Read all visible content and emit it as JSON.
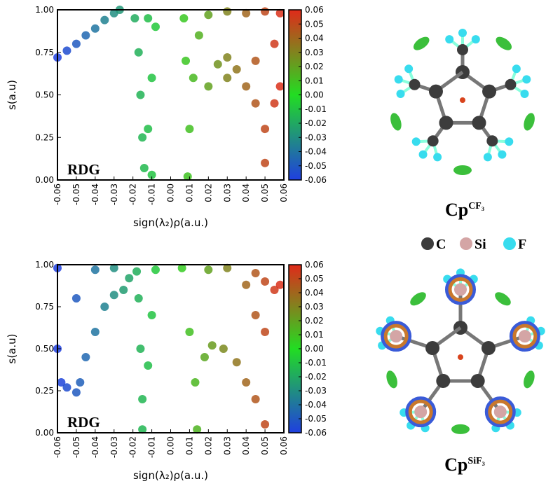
{
  "chart_data": [
    {
      "type": "scatter",
      "y_label": "s(a.u)",
      "x_label": "sign(λ₂)ρ(a.u.)",
      "annotation": "RDG",
      "xlim": [
        -0.06,
        0.06
      ],
      "ylim": [
        0,
        1
      ],
      "xticks": [
        -0.06,
        -0.05,
        -0.04,
        -0.03,
        -0.02,
        -0.01,
        {
          "value": 0,
          "label": "0.00"
        },
        0.01,
        0.02,
        0.03,
        0.04,
        0.05,
        0.06
      ],
      "yticks": [
        {
          "value": 0,
          "label": "0.00"
        },
        0.25,
        {
          "value": 0.5,
          "label": "0.50"
        },
        0.75,
        {
          "value": 1,
          "label": "1.00"
        }
      ],
      "clim": [
        -0.06,
        0.06
      ],
      "cticks": [
        -0.06,
        -0.05,
        -0.04,
        -0.03,
        -0.02,
        -0.01,
        {
          "value": 0,
          "label": "0.00"
        },
        0.01,
        0.02,
        0.03,
        0.04,
        0.05,
        0.06
      ],
      "colormap": [
        "#1f3fe0",
        "#22dd22",
        "#e02a1a"
      ],
      "x": [
        -0.06,
        -0.055,
        -0.05,
        -0.045,
        -0.04,
        -0.035,
        -0.03,
        -0.027,
        -0.019,
        -0.017,
        -0.016,
        -0.015,
        -0.014,
        -0.012,
        -0.01,
        -0.008,
        -0.012,
        -0.01,
        0.009,
        0.01,
        0.008,
        0.007,
        0.012,
        0.015,
        0.02,
        0.03,
        0.04,
        0.05,
        0.058,
        0.02,
        0.025,
        0.03,
        0.035,
        0.04,
        0.045,
        0.05,
        0.05,
        0.055,
        0.058,
        0.03,
        0.045,
        0.055
      ],
      "y": [
        0.72,
        0.76,
        0.8,
        0.85,
        0.89,
        0.94,
        0.98,
        1.0,
        0.95,
        0.75,
        0.5,
        0.25,
        0.07,
        0.3,
        0.6,
        0.9,
        0.95,
        0.03,
        0.02,
        0.3,
        0.7,
        0.95,
        0.6,
        0.85,
        0.97,
        0.99,
        0.98,
        0.99,
        0.98,
        0.55,
        0.68,
        0.72,
        0.65,
        0.55,
        0.45,
        0.3,
        0.1,
        0.45,
        0.55,
        0.6,
        0.7,
        0.8
      ]
    },
    {
      "type": "scatter",
      "y_label": "s(a.u)",
      "x_label": "sign(λ₂)ρ(a.u.)",
      "annotation": "RDG",
      "xlim": [
        -0.06,
        0.06
      ],
      "ylim": [
        0,
        1
      ],
      "xticks": [
        -0.06,
        -0.05,
        -0.04,
        -0.03,
        -0.02,
        -0.01,
        {
          "value": 0,
          "label": "0.00"
        },
        0.01,
        0.02,
        0.03,
        0.04,
        0.05,
        0.06
      ],
      "yticks": [
        {
          "value": 0,
          "label": "0.00"
        },
        0.25,
        {
          "value": 0.5,
          "label": "0.50"
        },
        0.75,
        {
          "value": 1,
          "label": "1.00"
        }
      ],
      "clim": [
        -0.06,
        0.06
      ],
      "cticks": [
        -0.06,
        -0.05,
        -0.04,
        -0.03,
        -0.02,
        -0.01,
        {
          "value": 0,
          "label": "0.00"
        },
        0.01,
        0.02,
        0.03,
        0.04,
        0.05,
        0.06
      ],
      "colormap": [
        "#1f3fe0",
        "#22dd22",
        "#e02a1a"
      ],
      "x": [
        -0.06,
        -0.06,
        -0.058,
        -0.055,
        -0.05,
        -0.048,
        -0.045,
        -0.04,
        -0.035,
        -0.03,
        -0.05,
        -0.04,
        -0.03,
        -0.025,
        -0.022,
        -0.018,
        -0.017,
        -0.016,
        -0.015,
        -0.015,
        -0.012,
        -0.01,
        -0.008,
        0.014,
        0.013,
        0.01,
        0.006,
        0.018,
        0.022,
        0.028,
        0.035,
        0.04,
        0.045,
        0.05,
        0.02,
        0.03,
        0.04,
        0.045,
        0.05,
        0.055,
        0.058,
        0.05,
        0.045
      ],
      "y": [
        0.98,
        0.5,
        0.3,
        0.27,
        0.24,
        0.3,
        0.45,
        0.6,
        0.75,
        0.82,
        0.8,
        0.97,
        0.98,
        0.85,
        0.92,
        0.96,
        0.8,
        0.5,
        0.2,
        0.02,
        0.4,
        0.7,
        0.97,
        0.02,
        0.3,
        0.6,
        0.98,
        0.45,
        0.52,
        0.5,
        0.42,
        0.3,
        0.2,
        0.05,
        0.97,
        0.98,
        0.88,
        0.95,
        0.9,
        0.85,
        0.88,
        0.6,
        0.7
      ]
    }
  ],
  "molecules": [
    {
      "name": "Cp",
      "superscript": "CF₃"
    },
    {
      "name": "Cp",
      "superscript": "SiF₃"
    }
  ],
  "atom_legend": [
    {
      "label": "C",
      "color": "#3c3c3c"
    },
    {
      "label": "Si",
      "color": "#d4a5a5"
    },
    {
      "label": "F",
      "color": "#38dcee"
    }
  ]
}
